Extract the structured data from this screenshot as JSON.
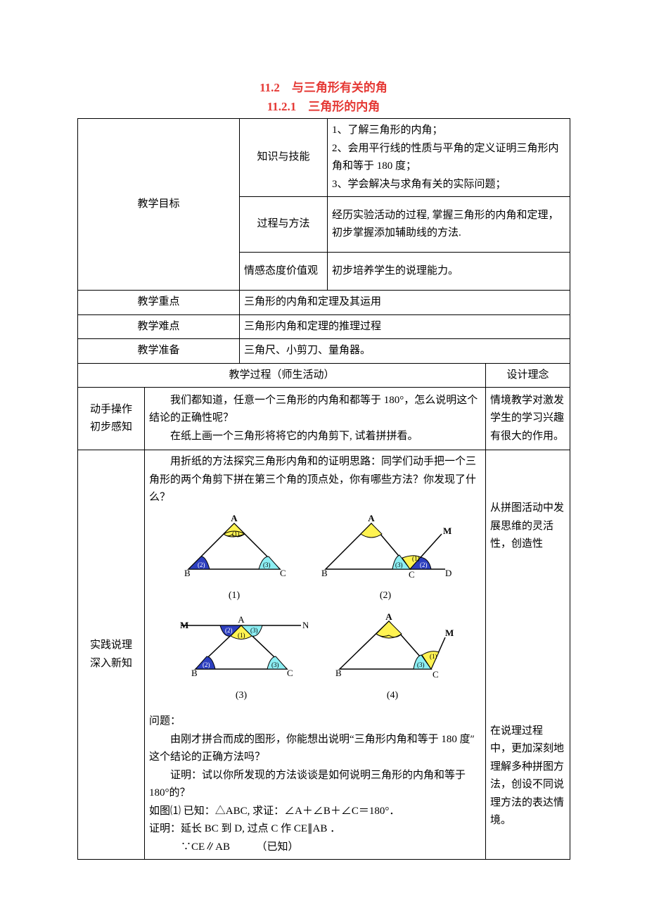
{
  "titles": {
    "main": "11.2　与三角形有关的角",
    "sub": "11.2.1　三角形的内角"
  },
  "rows": {
    "goal_label": "教学目标",
    "goal_items": [
      {
        "label": "知识与技能",
        "content": "1、了解三角形的内角；\n2、会用平行线的性质与平角的定义证明三角形内角和等于 180 度；\n3、学会解决与求角有关的实际问题；"
      },
      {
        "label": "过程与方法",
        "content": "经历实验活动的过程, 掌握三角形的内角和定理，初步掌握添加辅助线的方法."
      },
      {
        "label": "情感态度价值观",
        "content": "初步培养学生的说理能力。"
      }
    ],
    "focus": {
      "label": "教学重点",
      "content": "三角形的内角和定理及其运用"
    },
    "difficulty": {
      "label": "教学难点",
      "content": "三角形内角和定理的推理过程"
    },
    "prep": {
      "label": "教学准备",
      "content": "三角尺、小剪刀、量角器。"
    },
    "process_header": "教学过程（师生活动）",
    "concept_header": "设计理念",
    "step1": {
      "label": "动手操作\n初步感知",
      "content": "我们都知道，任意一个三角形的内角和都等于 180°，怎么说明这个结论的正确性呢？\n　　在纸上画一个三角形将将它的内角剪下, 试着拼拼看。",
      "concept": "情境教学对激发学生的学习兴趣有很大的作用。"
    },
    "step2": {
      "label": "实践说理\n深入新知",
      "intro": "　　用折纸的方法探究三角形内角和的证明思路：同学们动手把一个三角形的两个角剪下拼在第三个角的顶点处，你有哪些方法？你发现了什么？",
      "question": "问题：\n　　由刚才拼合而成的图形，你能想出说明“三角形内角和等于 180 度″这个结论的正确方法吗？\n　　证明：试以你所发现的方法谈谈是如何说明三角形的内角和等于 180°的？\n如图⑴ 已知：△ABC, 求证：∠A＋∠B＋∠C＝180°．\n证明：延长 BC 到 D, 过点 C 作 CE∥AB ．\n　　　∵CE∥AB　　　（已知）",
      "concept1": "从拼图活动中发展思维的灵活性，创造性",
      "concept2": "在说理过程 中，更加深刻地理解多种拼图方法，创设不同说理方法的表达情境。"
    }
  },
  "colors": {
    "angle_yellow": "#fff352",
    "angle_blue": "#2d3fbf",
    "angle_cyan": "#8ceef3",
    "stroke": "#000000",
    "text_red": "#e53935"
  },
  "diagrams": {
    "row1": [
      {
        "caption": "(1)"
      },
      {
        "caption": "(2)"
      }
    ],
    "row2": [
      {
        "caption": "(3)"
      },
      {
        "caption": "(4)"
      }
    ]
  }
}
